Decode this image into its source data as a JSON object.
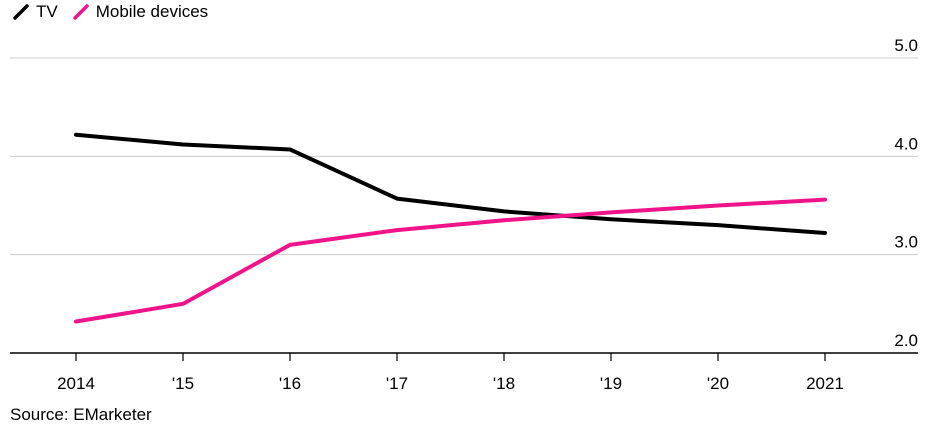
{
  "legend": {
    "tv_label": "TV",
    "mobile_label": "Mobile devices"
  },
  "source": "Source: EMarketer",
  "colors": {
    "tv": "#000000",
    "mobile": "#f0138a",
    "grid": "#cccccc",
    "axis": "#000000"
  },
  "chart_data": {
    "type": "line",
    "categories": [
      "2014",
      "'15",
      "'16",
      "'17",
      "'18",
      "'19",
      "'20",
      "2021"
    ],
    "series": [
      {
        "name": "TV",
        "values": [
          4.22,
          4.12,
          4.07,
          3.57,
          3.44,
          3.36,
          3.3,
          3.22
        ]
      },
      {
        "name": "Mobile devices",
        "values": [
          2.32,
          2.5,
          3.1,
          3.25,
          3.35,
          3.43,
          3.5,
          3.56
        ]
      }
    ],
    "y_ticks": [
      "2.0",
      "3.0",
      "4.0",
      "5.0"
    ],
    "ylim": [
      2.0,
      5.0
    ],
    "y_axis_side": "right",
    "grid": true,
    "legend_position": "top-left",
    "title": "",
    "xlabel": "",
    "ylabel": ""
  }
}
